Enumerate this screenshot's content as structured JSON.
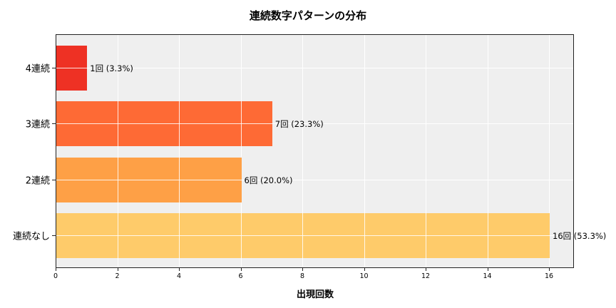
{
  "chart_data": {
    "type": "bar",
    "orientation": "horizontal",
    "title": "連続数字パターンの分布",
    "xlabel": "出現回数",
    "ylabel": "",
    "categories": [
      "4連続",
      "3連続",
      "2連続",
      "連続なし"
    ],
    "values": [
      1,
      7,
      6,
      16
    ],
    "percentages": [
      3.3,
      23.3,
      20.0,
      53.3
    ],
    "data_labels": [
      "1回 (3.3%)",
      "7回 (23.3%)",
      "6回 (20.0%)",
      "16回 (53.3%)"
    ],
    "colors": [
      "#ee3124",
      "#fe6a35",
      "#fea046",
      "#fecb6a"
    ],
    "xlim": [
      0,
      16.8
    ],
    "xticks": [
      "0",
      "2",
      "4",
      "6",
      "8",
      "10",
      "12",
      "14",
      "16"
    ],
    "grid": true,
    "background": "#efefef"
  }
}
